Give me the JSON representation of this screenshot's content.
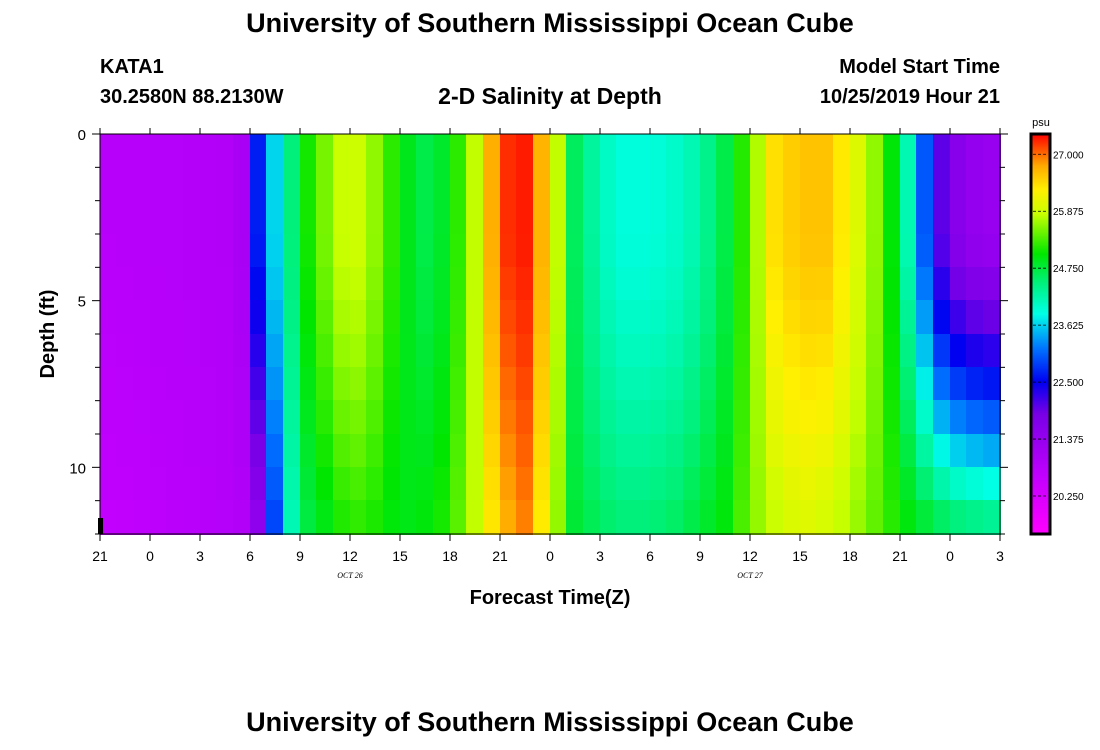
{
  "header": {
    "title": "University of Southern Mississippi Ocean Cube",
    "station_id": "KATA1",
    "coordinates": "30.2580N 88.2130W",
    "subtitle": "2-D Salinity at Depth",
    "model_start_label": "Model Start Time",
    "model_start_value": "10/25/2019 Hour 21"
  },
  "footer": {
    "title": "University of Southern Mississippi Ocean Cube"
  },
  "chart_data": {
    "type": "heatmap",
    "title": "2-D Salinity at Depth",
    "xlabel": "Forecast Time(Z)",
    "ylabel": "Depth (ft)",
    "x_hours_range": [
      0,
      54
    ],
    "y_range": [
      0,
      12
    ],
    "y_inverted": true,
    "x_tick_labels": [
      "21",
      "0",
      "3",
      "6",
      "9",
      "12",
      "15",
      "18",
      "21",
      "0",
      "3",
      "6",
      "9",
      "12",
      "15",
      "18",
      "21",
      "0",
      "3"
    ],
    "x_tick_hours": [
      0,
      3,
      6,
      9,
      12,
      15,
      18,
      21,
      24,
      27,
      30,
      33,
      36,
      39,
      42,
      45,
      48,
      51,
      54
    ],
    "date_labels": [
      {
        "text": "OCT 26",
        "hour": 15
      },
      {
        "text": "OCT 27",
        "hour": 39
      }
    ],
    "y_tick_labels": [
      "0",
      "5",
      "10"
    ],
    "y_tick_values": [
      0,
      5,
      10
    ],
    "colorbar": {
      "unit": "psu",
      "min": 19.5,
      "max": 27.4,
      "tick_values": [
        27.0,
        25.875,
        24.75,
        23.625,
        22.5,
        21.375,
        20.25
      ],
      "tick_labels": [
        "27.000",
        "25.875",
        "24.750",
        "23.625",
        "22.500",
        "21.375",
        "20.250"
      ]
    },
    "surface_salinity_profile": {
      "hours": [
        0,
        8.4,
        8.6,
        9.0,
        9.6,
        10.2,
        11.2,
        12.0,
        13.5,
        15,
        16.5,
        18,
        19.5,
        21,
        22.5,
        24,
        25.5,
        27,
        28.5,
        30,
        31.5,
        33,
        34.5,
        36,
        37.5,
        39,
        40.5,
        42,
        43.5,
        45,
        46.5,
        48,
        48.8,
        49.5,
        50.2,
        51,
        52.5,
        54
      ],
      "values": [
        20.8,
        20.9,
        21.2,
        22.0,
        22.8,
        23.4,
        24.2,
        24.9,
        25.5,
        26.0,
        25.6,
        25.0,
        24.7,
        24.9,
        25.8,
        27.2,
        27.3,
        26.4,
        24.6,
        24.1,
        23.9,
        23.9,
        24.0,
        24.2,
        24.7,
        25.4,
        26.4,
        26.6,
        26.6,
        26.2,
        25.6,
        24.7,
        23.8,
        23.0,
        22.2,
        21.7,
        21.4,
        21.3
      ]
    },
    "bottom_salinity_profile": {
      "hours": [
        0,
        9.0,
        9.6,
        10.2,
        10.8,
        11.4,
        12.0,
        13.5,
        15,
        16.5,
        18,
        19.5,
        21,
        22.5,
        24,
        25.5,
        27,
        28.5,
        30,
        31.5,
        33,
        34.5,
        36,
        37.5,
        39,
        40.5,
        42,
        43.5,
        45,
        46.5,
        48,
        49.5,
        51,
        52.5,
        54
      ],
      "values": [
        20.6,
        20.9,
        21.5,
        22.4,
        23.3,
        24.0,
        24.6,
        24.9,
        25.2,
        25.1,
        24.9,
        25.0,
        25.2,
        25.8,
        26.6,
        26.9,
        26.0,
        24.8,
        24.6,
        24.5,
        24.5,
        24.6,
        24.8,
        25.0,
        25.5,
        25.8,
        26.0,
        25.9,
        25.7,
        25.4,
        25.1,
        24.9,
        24.7,
        24.6,
        24.5
      ]
    }
  }
}
